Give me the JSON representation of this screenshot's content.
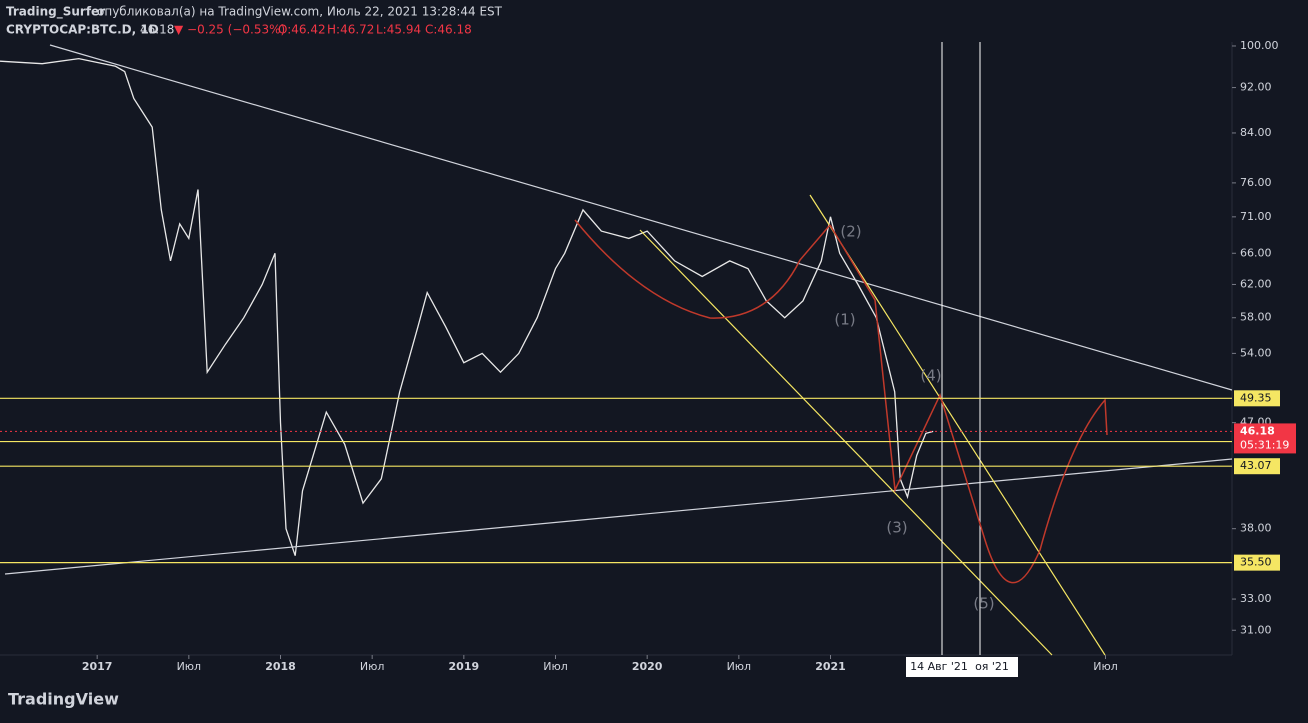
{
  "header": {
    "author": "Trading_Surfer",
    "published": "опубликовал(а) на TradingView.com, Июль 22, 2021 13:28:44 EST",
    "symbol": "CRYPTOCAP:BTC.D, 1D",
    "last": "46.18",
    "change": "▼ −0.25 (−0.53%)",
    "open": "O:46.42",
    "high": "H:46.72",
    "low": "L:45.94",
    "close": "C:46.18"
  },
  "footer": {
    "logo": "TradingView"
  },
  "chart_data": {
    "type": "line",
    "log_scale": true,
    "x": [
      2016.47,
      2016.7,
      2016.9,
      2017.1,
      2017.15,
      2017.2,
      2017.3,
      2017.35,
      2017.4,
      2017.45,
      2017.5,
      2017.55,
      2017.6,
      2017.7,
      2017.8,
      2017.9,
      2017.97,
      2018.0,
      2018.03,
      2018.08,
      2018.12,
      2018.25,
      2018.35,
      2018.45,
      2018.55,
      2018.65,
      2018.75,
      2018.8,
      2018.9,
      2019.0,
      2019.1,
      2019.2,
      2019.3,
      2019.4,
      2019.5,
      2019.55,
      2019.65,
      2019.75,
      2019.9,
      2020.0,
      2020.15,
      2020.3,
      2020.45,
      2020.55,
      2020.65,
      2020.75,
      2020.85,
      2020.95,
      2021.0,
      2021.05,
      2021.15,
      2021.25,
      2021.35,
      2021.38,
      2021.42,
      2021.47,
      2021.52,
      2021.56
    ],
    "series": [
      {
        "name": "CRYPTOCAP:BTC.D",
        "color": "#e8e8e8",
        "values": [
          97,
          96.5,
          97.5,
          96,
          95,
          90,
          85,
          72,
          65,
          70,
          68,
          75,
          52,
          55,
          58,
          62,
          66,
          47,
          38,
          36,
          41,
          48,
          45,
          40,
          42,
          50,
          57,
          61,
          57,
          53,
          54,
          52,
          54,
          58,
          64,
          66,
          72,
          69,
          68,
          69,
          65,
          63,
          65,
          64,
          60,
          58,
          60,
          65,
          71,
          66,
          62,
          58,
          50,
          42,
          40.5,
          44,
          46,
          46.18
        ]
      }
    ],
    "xlim": [
      2016.47,
      2023.19
    ],
    "ylim": [
      29.5,
      100.8
    ],
    "xticks": [
      {
        "value": 2017,
        "label": "2017"
      },
      {
        "value": 2017.5,
        "label": "Июл"
      },
      {
        "value": 2018,
        "label": "2018"
      },
      {
        "value": 2018.5,
        "label": "Июл"
      },
      {
        "value": 2019,
        "label": "2019"
      },
      {
        "value": 2019.5,
        "label": "Июл"
      },
      {
        "value": 2020,
        "label": "2020"
      },
      {
        "value": 2020.5,
        "label": "Июл"
      },
      {
        "value": 2021,
        "label": "2021"
      },
      {
        "value": 2022.5,
        "label": "Июл"
      }
    ],
    "yticks": [
      {
        "value": 100,
        "label": "100.00"
      },
      {
        "value": 92,
        "label": "92.00"
      },
      {
        "value": 84,
        "label": "84.00"
      },
      {
        "value": 76,
        "label": "76.00"
      },
      {
        "value": 71,
        "label": "71.00"
      },
      {
        "value": 66,
        "label": "66.00"
      },
      {
        "value": 62,
        "label": "62.00"
      },
      {
        "value": 58,
        "label": "58.00"
      },
      {
        "value": 54,
        "label": "54.00"
      },
      {
        "value": 47,
        "label": "47.00"
      },
      {
        "value": 38,
        "label": "38.00"
      },
      {
        "value": 33,
        "label": "33.00"
      },
      {
        "value": 31,
        "label": "31.00"
      }
    ],
    "levels": [
      49.35,
      45.25,
      43.07,
      {
        "value": 35.5,
        "label": "35.50"
      }
    ],
    "level_color": "#f5e663",
    "last_price": 46.18,
    "countdown": "05:31:19",
    "last_color": "#f23645",
    "crosshair": [
      "14 Авг '21",
      "оя '21"
    ],
    "annotations": [
      "(1)",
      "(2)",
      "(3)",
      "(4)",
      "(5)"
    ]
  }
}
